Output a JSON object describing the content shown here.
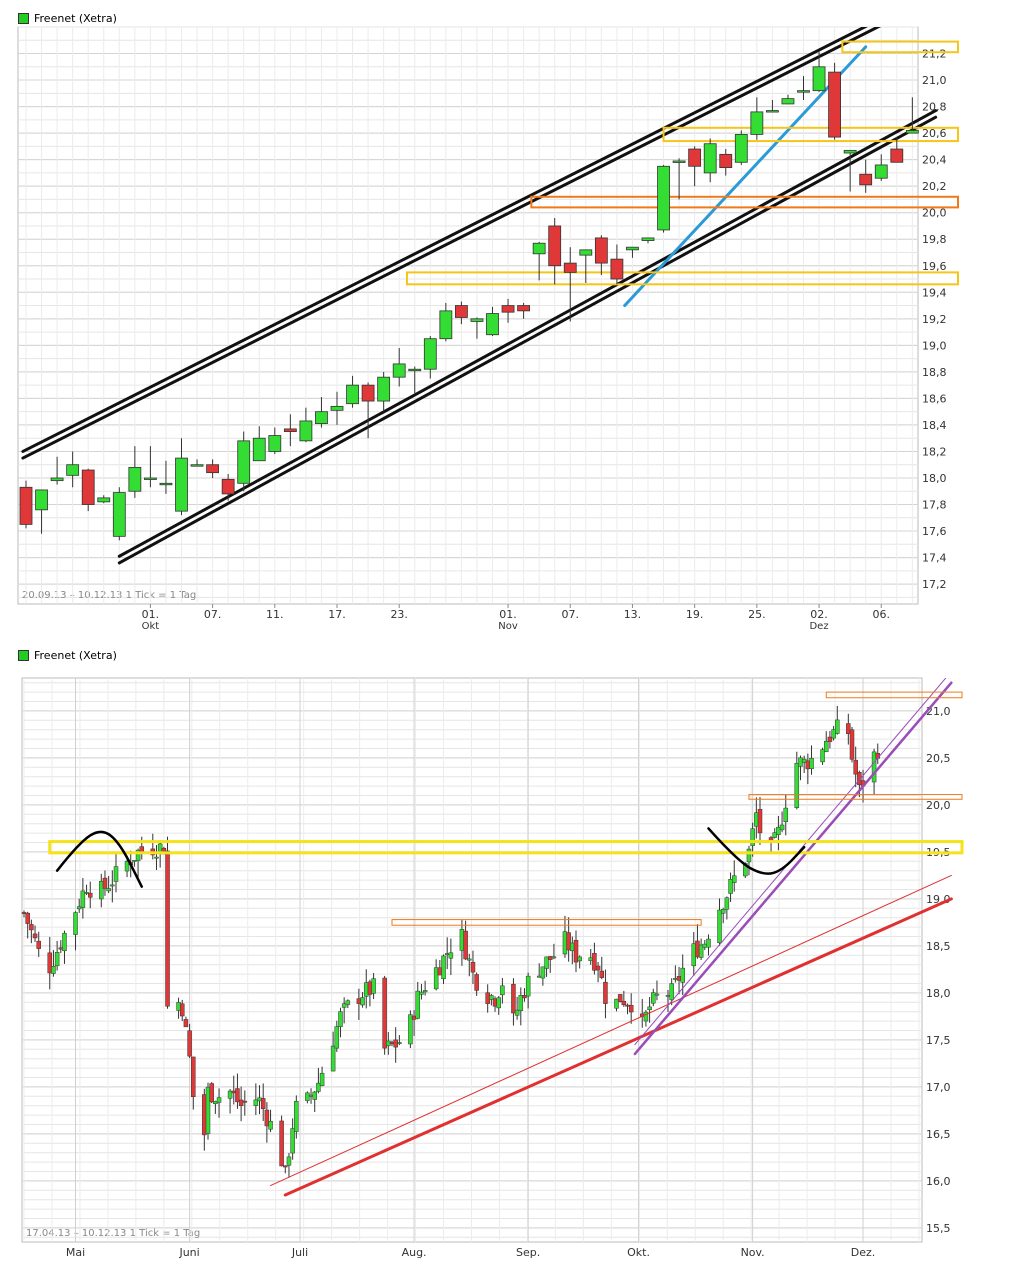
{
  "chart_data": [
    {
      "type": "candlestick",
      "legend": "Freenet (Xetra)",
      "range_label": "20.09.13 – 10.12.13",
      "tick_label": "1 Tick = 1 Tag",
      "ylim": [
        17.05,
        21.4
      ],
      "y_ticks": [
        "17,2",
        "17,4",
        "17,6",
        "17,8",
        "18,0",
        "18,2",
        "18,4",
        "18,6",
        "18,8",
        "19,0",
        "19,2",
        "19,4",
        "19,6",
        "19,8",
        "20,0",
        "20,2",
        "20,4",
        "20,6",
        "20,8",
        "21,0",
        "21,2"
      ],
      "x_labels": [
        {
          "label": "01.",
          "sub": "Okt",
          "i": 8
        },
        {
          "label": "07.",
          "i": 12
        },
        {
          "label": "11.",
          "i": 16
        },
        {
          "label": "17.",
          "i": 20
        },
        {
          "label": "23.",
          "i": 24
        },
        {
          "label": "01.",
          "sub": "Nov",
          "i": 31
        },
        {
          "label": "07.",
          "i": 35
        },
        {
          "label": "13.",
          "i": 39
        },
        {
          "label": "19.",
          "i": 43
        },
        {
          "label": "25.",
          "i": 47
        },
        {
          "label": "02.",
          "sub": "Dez",
          "i": 51
        },
        {
          "label": "06.",
          "i": 55
        }
      ],
      "candles": [
        {
          "o": 17.93,
          "h": 17.98,
          "l": 17.62,
          "c": 17.65
        },
        {
          "o": 17.76,
          "h": 17.91,
          "l": 17.58,
          "c": 17.91
        },
        {
          "o": 17.98,
          "h": 18.16,
          "l": 17.95,
          "c": 18.0
        },
        {
          "o": 18.02,
          "h": 18.2,
          "l": 17.93,
          "c": 18.1
        },
        {
          "o": 18.06,
          "h": 18.07,
          "l": 17.75,
          "c": 17.8
        },
        {
          "o": 17.82,
          "h": 17.87,
          "l": 17.81,
          "c": 17.85
        },
        {
          "o": 17.56,
          "h": 17.93,
          "l": 17.53,
          "c": 17.89
        },
        {
          "o": 17.9,
          "h": 18.24,
          "l": 17.85,
          "c": 18.08
        },
        {
          "o": 18.0,
          "h": 18.24,
          "l": 17.93,
          "c": 18.0
        },
        {
          "o": 17.96,
          "h": 18.13,
          "l": 17.88,
          "c": 17.96
        },
        {
          "o": 17.75,
          "h": 18.3,
          "l": 17.72,
          "c": 18.15
        },
        {
          "o": 18.1,
          "h": 18.14,
          "l": 18.1,
          "c": 18.1
        },
        {
          "o": 18.1,
          "h": 18.14,
          "l": 18.0,
          "c": 18.04
        },
        {
          "o": 17.99,
          "h": 18.03,
          "l": 17.83,
          "c": 17.88
        },
        {
          "o": 17.96,
          "h": 18.35,
          "l": 17.9,
          "c": 18.28
        },
        {
          "o": 18.13,
          "h": 18.39,
          "l": 18.13,
          "c": 18.3
        },
        {
          "o": 18.2,
          "h": 18.38,
          "l": 18.18,
          "c": 18.32
        },
        {
          "o": 18.37,
          "h": 18.48,
          "l": 18.24,
          "c": 18.35
        },
        {
          "o": 18.28,
          "h": 18.53,
          "l": 18.27,
          "c": 18.43
        },
        {
          "o": 18.41,
          "h": 18.61,
          "l": 18.38,
          "c": 18.5
        },
        {
          "o": 18.51,
          "h": 18.65,
          "l": 18.4,
          "c": 18.54
        },
        {
          "o": 18.56,
          "h": 18.77,
          "l": 18.53,
          "c": 18.7
        },
        {
          "o": 18.7,
          "h": 18.72,
          "l": 18.3,
          "c": 18.58
        },
        {
          "o": 18.58,
          "h": 18.8,
          "l": 18.5,
          "c": 18.76
        },
        {
          "o": 18.76,
          "h": 18.98,
          "l": 18.69,
          "c": 18.86
        },
        {
          "o": 18.82,
          "h": 18.84,
          "l": 18.64,
          "c": 18.82
        },
        {
          "o": 18.82,
          "h": 19.07,
          "l": 18.75,
          "c": 19.05
        },
        {
          "o": 19.05,
          "h": 19.32,
          "l": 19.03,
          "c": 19.26
        },
        {
          "o": 19.3,
          "h": 19.33,
          "l": 19.16,
          "c": 19.21
        },
        {
          "o": 19.18,
          "h": 19.21,
          "l": 19.05,
          "c": 19.2
        },
        {
          "o": 19.08,
          "h": 19.29,
          "l": 19.07,
          "c": 19.24
        },
        {
          "o": 19.3,
          "h": 19.35,
          "l": 19.17,
          "c": 19.25
        },
        {
          "o": 19.3,
          "h": 19.32,
          "l": 19.2,
          "c": 19.26
        },
        {
          "o": 19.69,
          "h": 19.78,
          "l": 19.49,
          "c": 19.77
        },
        {
          "o": 19.9,
          "h": 19.96,
          "l": 19.46,
          "c": 19.6
        },
        {
          "o": 19.62,
          "h": 19.74,
          "l": 19.18,
          "c": 19.55
        },
        {
          "o": 19.68,
          "h": 19.7,
          "l": 19.47,
          "c": 19.72
        },
        {
          "o": 19.81,
          "h": 19.83,
          "l": 19.53,
          "c": 19.62
        },
        {
          "o": 19.65,
          "h": 19.76,
          "l": 19.46,
          "c": 19.5
        },
        {
          "o": 19.72,
          "h": 19.72,
          "l": 19.66,
          "c": 19.74
        },
        {
          "o": 19.79,
          "h": 19.81,
          "l": 19.77,
          "c": 19.81
        },
        {
          "o": 19.87,
          "h": 20.36,
          "l": 19.85,
          "c": 20.35
        },
        {
          "o": 20.39,
          "h": 20.41,
          "l": 20.1,
          "c": 20.39
        },
        {
          "o": 20.48,
          "h": 20.5,
          "l": 20.2,
          "c": 20.35
        },
        {
          "o": 20.3,
          "h": 20.56,
          "l": 20.23,
          "c": 20.52
        },
        {
          "o": 20.44,
          "h": 20.48,
          "l": 20.28,
          "c": 20.34
        },
        {
          "o": 20.38,
          "h": 20.62,
          "l": 20.36,
          "c": 20.59
        },
        {
          "o": 20.59,
          "h": 20.87,
          "l": 20.55,
          "c": 20.76
        },
        {
          "o": 20.77,
          "h": 20.85,
          "l": 20.76,
          "c": 20.77
        },
        {
          "o": 20.82,
          "h": 20.89,
          "l": 20.82,
          "c": 20.86
        },
        {
          "o": 20.92,
          "h": 21.03,
          "l": 20.85,
          "c": 20.92
        },
        {
          "o": 20.92,
          "h": 21.22,
          "l": 20.91,
          "c": 21.1
        },
        {
          "o": 21.06,
          "h": 21.13,
          "l": 20.55,
          "c": 20.57
        },
        {
          "o": 20.45,
          "h": 20.47,
          "l": 20.16,
          "c": 20.47
        },
        {
          "o": 20.29,
          "h": 20.4,
          "l": 20.15,
          "c": 20.21
        },
        {
          "o": 20.26,
          "h": 20.44,
          "l": 20.24,
          "c": 20.36
        },
        {
          "o": 20.48,
          "h": 20.57,
          "l": 20.41,
          "c": 20.38
        },
        {
          "o": 20.6,
          "h": 20.87,
          "l": 20.6,
          "c": 20.62
        }
      ],
      "lines": [
        {
          "color": "#111111",
          "width": 3,
          "from": [
            -0.2,
            18.15
          ],
          "to": [
            58.5,
            21.62
          ]
        },
        {
          "color": "#111111",
          "width": 3,
          "from": [
            -0.2,
            18.2
          ],
          "to": [
            58.5,
            21.67
          ]
        },
        {
          "color": "#111111",
          "width": 3,
          "from": [
            6.0,
            17.36
          ],
          "to": [
            58.5,
            20.72
          ]
        },
        {
          "color": "#111111",
          "width": 3,
          "from": [
            6.0,
            17.41
          ],
          "to": [
            58.5,
            20.77
          ]
        },
        {
          "color": "#2a9ad8",
          "width": 3,
          "from": [
            38.5,
            19.3
          ],
          "to": [
            54,
            21.25
          ]
        }
      ],
      "levels": [
        {
          "color": "#f5c518",
          "from": 52.5,
          "y1": 21.21,
          "y2": 21.29,
          "width": 2
        },
        {
          "color": "#f5c518",
          "from": 41.0,
          "y1": 20.54,
          "y2": 20.64,
          "width": 2
        },
        {
          "color": "#f07a1a",
          "from": 32.5,
          "y1": 20.04,
          "y2": 20.12,
          "width": 2
        },
        {
          "color": "#f5c518",
          "from": 24.5,
          "y1": 19.46,
          "y2": 19.55,
          "width": 2
        }
      ]
    },
    {
      "type": "candlestick",
      "legend": "Freenet (Xetra)",
      "range_label": "17.04.13 – 10.12.13",
      "tick_label": "1 Tick = 1 Tag",
      "ylim": [
        15.35,
        21.35
      ],
      "y_ticks": [
        "15,5",
        "16,0",
        "16,5",
        "17,0",
        "17,5",
        "18,0",
        "18,5",
        "19,0",
        "19,5",
        "20,0",
        "20,5",
        "21,0"
      ],
      "x_labels": [
        {
          "label": "Mai",
          "d": 14
        },
        {
          "label": "Juni",
          "d": 45
        },
        {
          "label": "Juli",
          "d": 75
        },
        {
          "label": "Aug.",
          "d": 106
        },
        {
          "label": "Sep.",
          "d": 137
        },
        {
          "label": "Okt.",
          "d": 167
        },
        {
          "label": "Nov.",
          "d": 198
        },
        {
          "label": "Dez.",
          "d": 228
        }
      ],
      "anchors": [
        {
          "d": 0,
          "p": 18.85
        },
        {
          "d": 3,
          "p": 18.55
        },
        {
          "d": 6,
          "p": 18.2
        },
        {
          "d": 9,
          "p": 18.45
        },
        {
          "d": 13,
          "p": 18.8
        },
        {
          "d": 17,
          "p": 19.15
        },
        {
          "d": 20,
          "p": 19.05
        },
        {
          "d": 24,
          "p": 19.2
        },
        {
          "d": 27,
          "p": 19.35
        },
        {
          "d": 31,
          "p": 19.5
        },
        {
          "d": 35,
          "p": 19.55
        },
        {
          "d": 38,
          "p": 19.55
        },
        {
          "d": 39,
          "p": 17.85
        },
        {
          "d": 41,
          "p": 17.95
        },
        {
          "d": 43,
          "p": 17.85
        },
        {
          "d": 45,
          "p": 17.3
        },
        {
          "d": 47,
          "p": 16.5
        },
        {
          "d": 48,
          "p": 16.05
        },
        {
          "d": 50,
          "p": 16.95
        },
        {
          "d": 53,
          "p": 16.9
        },
        {
          "d": 56,
          "p": 16.95
        },
        {
          "d": 59,
          "p": 16.8
        },
        {
          "d": 62,
          "p": 16.9
        },
        {
          "d": 64,
          "p": 16.85
        },
        {
          "d": 67,
          "p": 16.6
        },
        {
          "d": 69,
          "p": 16.4
        },
        {
          "d": 71,
          "p": 16.05
        },
        {
          "d": 73,
          "p": 16.6
        },
        {
          "d": 75,
          "p": 16.95
        },
        {
          "d": 77,
          "p": 16.85
        },
        {
          "d": 80,
          "p": 17.05
        },
        {
          "d": 83,
          "p": 17.4
        },
        {
          "d": 86,
          "p": 17.75
        },
        {
          "d": 89,
          "p": 17.9
        },
        {
          "d": 92,
          "p": 18.0
        },
        {
          "d": 95,
          "p": 18.05
        },
        {
          "d": 98,
          "p": 17.4
        },
        {
          "d": 101,
          "p": 17.45
        },
        {
          "d": 104,
          "p": 17.55
        },
        {
          "d": 107,
          "p": 17.95
        },
        {
          "d": 110,
          "p": 18.15
        },
        {
          "d": 113,
          "p": 18.3
        },
        {
          "d": 116,
          "p": 18.5
        },
        {
          "d": 119,
          "p": 18.6
        },
        {
          "d": 122,
          "p": 18.2
        },
        {
          "d": 125,
          "p": 18.0
        },
        {
          "d": 128,
          "p": 17.95
        },
        {
          "d": 131,
          "p": 18.2
        },
        {
          "d": 133,
          "p": 17.7
        },
        {
          "d": 135,
          "p": 17.95
        },
        {
          "d": 138,
          "p": 18.2
        },
        {
          "d": 141,
          "p": 18.3
        },
        {
          "d": 144,
          "p": 18.4
        },
        {
          "d": 147,
          "p": 18.55
        },
        {
          "d": 150,
          "p": 18.4
        },
        {
          "d": 153,
          "p": 18.45
        },
        {
          "d": 156,
          "p": 18.3
        },
        {
          "d": 159,
          "p": 17.8
        },
        {
          "d": 162,
          "p": 17.95
        },
        {
          "d": 165,
          "p": 17.9
        },
        {
          "d": 167,
          "p": 17.55
        },
        {
          "d": 170,
          "p": 17.85
        },
        {
          "d": 173,
          "p": 18.0
        },
        {
          "d": 176,
          "p": 18.0
        },
        {
          "d": 179,
          "p": 18.25
        },
        {
          "d": 182,
          "p": 18.45
        },
        {
          "d": 185,
          "p": 18.55
        },
        {
          "d": 188,
          "p": 18.85
        },
        {
          "d": 191,
          "p": 19.05
        },
        {
          "d": 194,
          "p": 19.3
        },
        {
          "d": 197,
          "p": 19.5
        },
        {
          "d": 199,
          "p": 19.9
        },
        {
          "d": 201,
          "p": 19.55
        },
        {
          "d": 203,
          "p": 19.5
        },
        {
          "d": 205,
          "p": 19.7
        },
        {
          "d": 207,
          "p": 20.05
        },
        {
          "d": 209,
          "p": 20.45
        },
        {
          "d": 212,
          "p": 20.45
        },
        {
          "d": 215,
          "p": 20.5
        },
        {
          "d": 218,
          "p": 20.7
        },
        {
          "d": 221,
          "p": 20.8
        },
        {
          "d": 223,
          "p": 21.05
        },
        {
          "d": 225,
          "p": 20.5
        },
        {
          "d": 227,
          "p": 20.15
        },
        {
          "d": 230,
          "p": 20.45
        },
        {
          "d": 232,
          "p": 20.6
        }
      ],
      "lines": [
        {
          "color": "#e03030",
          "width": 3,
          "from": [
            71,
            15.85
          ],
          "to": [
            252,
            19.0
          ]
        },
        {
          "color": "#e03030",
          "width": 1,
          "from": [
            67,
            15.95
          ],
          "to": [
            252,
            19.25
          ]
        },
        {
          "color": "#9a4cb8",
          "width": 2.5,
          "from": [
            166,
            17.35
          ],
          "to": [
            252,
            21.3
          ]
        },
        {
          "color": "#9a4cb8",
          "width": 1,
          "from": [
            166,
            17.45
          ],
          "to": [
            252,
            21.42
          ]
        }
      ],
      "levels": [
        {
          "color": "#f5e21a",
          "from": 7,
          "y1": 19.49,
          "y2": 19.61,
          "width": 3
        },
        {
          "color": "#f07a1a",
          "from": 218,
          "y1": 21.14,
          "y2": 21.2,
          "width": 1
        },
        {
          "color": "#f07a1a",
          "from": 197,
          "y1": 20.06,
          "y2": 20.11,
          "width": 1
        },
        {
          "color": "#f07a1a",
          "from": 100,
          "y1": 18.72,
          "y2": 18.78,
          "width": 1,
          "to": 184
        }
      ],
      "arcs": [
        {
          "color": "#000000",
          "points": [
            [
              9,
              19.3
            ],
            [
              15,
              19.6
            ],
            [
              21,
              19.75
            ],
            [
              26,
              19.6
            ],
            [
              32,
              19.13
            ]
          ]
        },
        {
          "color": "#000000",
          "points": [
            [
              186,
              19.75
            ],
            [
              194,
              19.4
            ],
            [
              201,
              19.25
            ],
            [
              206,
              19.3
            ],
            [
              212,
              19.55
            ]
          ]
        }
      ]
    }
  ]
}
